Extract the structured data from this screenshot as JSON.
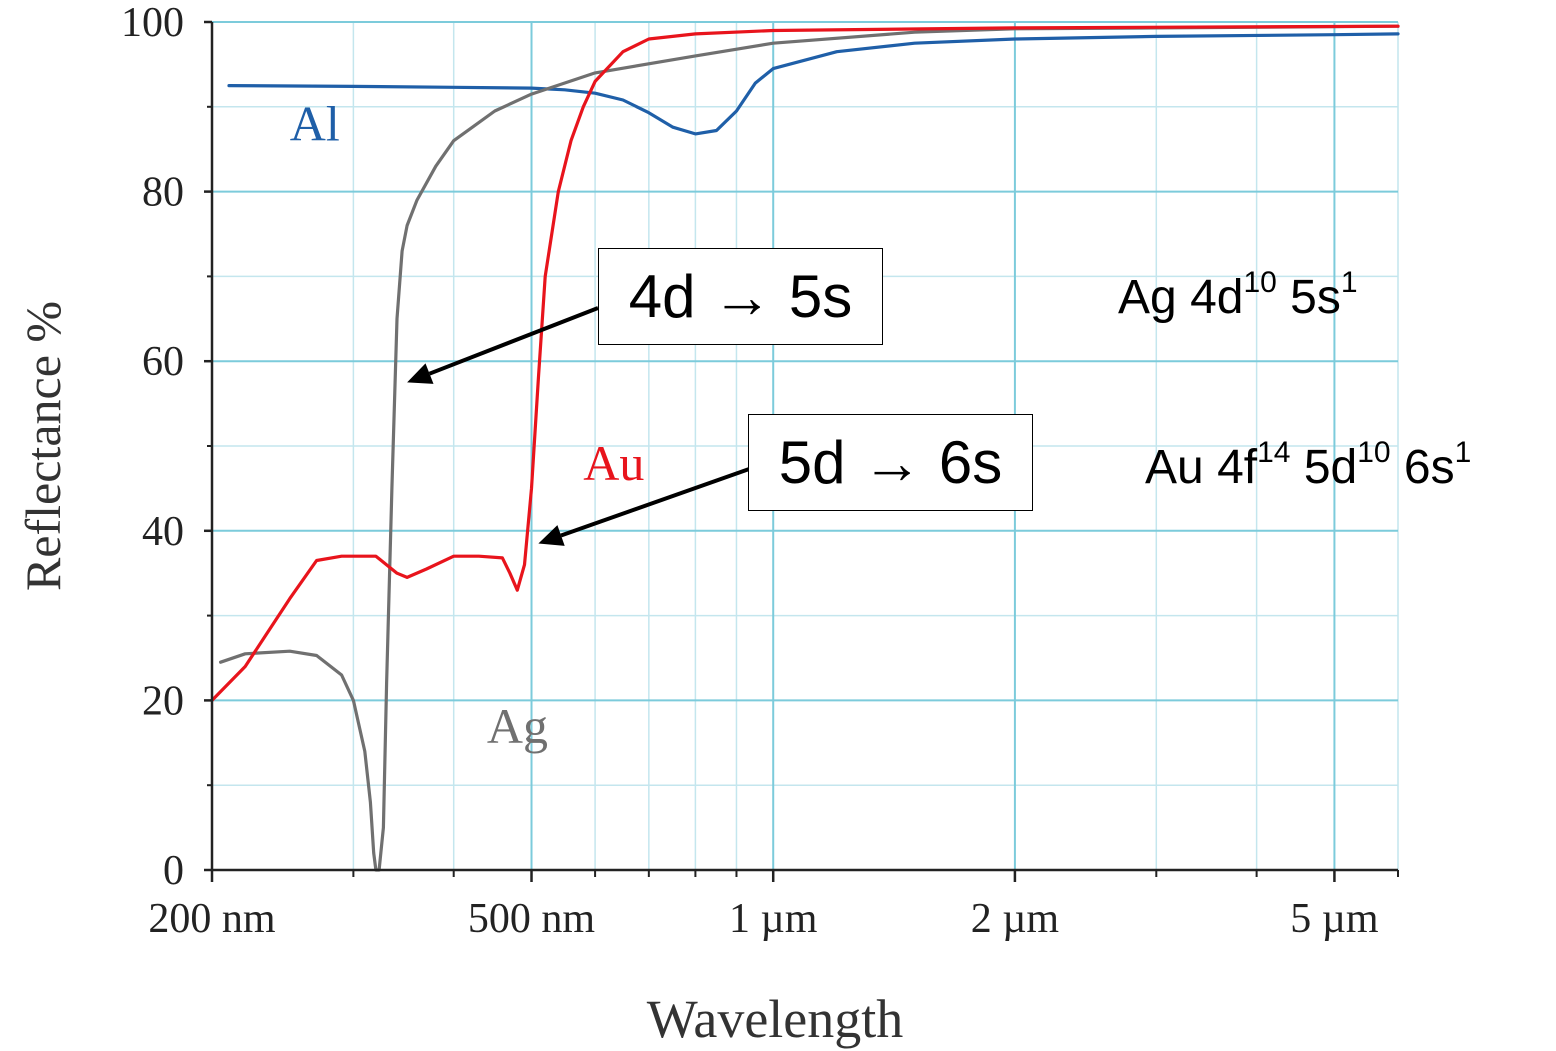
{
  "chart_data": {
    "type": "line",
    "xlabel": "Wavelength",
    "ylabel": "Reflectance %",
    "xscale": "log",
    "xlim_nm": [
      200,
      6000
    ],
    "ylim": [
      0,
      100
    ],
    "grid": true,
    "y_ticks": [
      "0",
      "20",
      "40",
      "60",
      "80",
      "100"
    ],
    "x_ticks": [
      {
        "value": 200,
        "label": "200 nm"
      },
      {
        "value": 500,
        "label": "500 nm"
      },
      {
        "value": 1000,
        "label": "1 µm"
      },
      {
        "value": 2000,
        "label": "2 µm"
      },
      {
        "value": 5000,
        "label": "5 µm"
      }
    ],
    "series": [
      {
        "name": "Al",
        "color": "#1f5fa8",
        "points": [
          [
            210,
            92.5
          ],
          [
            300,
            92.4
          ],
          [
            400,
            92.3
          ],
          [
            500,
            92.2
          ],
          [
            550,
            92.0
          ],
          [
            600,
            91.6
          ],
          [
            650,
            90.8
          ],
          [
            700,
            89.3
          ],
          [
            750,
            87.6
          ],
          [
            800,
            86.8
          ],
          [
            850,
            87.2
          ],
          [
            900,
            89.5
          ],
          [
            950,
            92.8
          ],
          [
            1000,
            94.5
          ],
          [
            1200,
            96.5
          ],
          [
            1500,
            97.5
          ],
          [
            2000,
            98.0
          ],
          [
            3000,
            98.3
          ],
          [
            5000,
            98.5
          ],
          [
            6000,
            98.6
          ]
        ]
      },
      {
        "name": "Ag",
        "color": "#707070",
        "points": [
          [
            205,
            24.5
          ],
          [
            220,
            25.5
          ],
          [
            250,
            25.8
          ],
          [
            270,
            25.3
          ],
          [
            290,
            23
          ],
          [
            300,
            20
          ],
          [
            310,
            14
          ],
          [
            315,
            8
          ],
          [
            318,
            2
          ],
          [
            320,
            0
          ],
          [
            323,
            0
          ],
          [
            327,
            5
          ],
          [
            330,
            22
          ],
          [
            335,
            45
          ],
          [
            340,
            65
          ],
          [
            345,
            73
          ],
          [
            350,
            76
          ],
          [
            360,
            79
          ],
          [
            380,
            83
          ],
          [
            400,
            86
          ],
          [
            450,
            89.5
          ],
          [
            500,
            91.5
          ],
          [
            600,
            94
          ],
          [
            800,
            96
          ],
          [
            1000,
            97.5
          ],
          [
            1500,
            98.8
          ],
          [
            2000,
            99.2
          ],
          [
            3000,
            99.3
          ],
          [
            6000,
            99.5
          ]
        ]
      },
      {
        "name": "Au",
        "color": "#e8141c",
        "points": [
          [
            200,
            20
          ],
          [
            220,
            24
          ],
          [
            250,
            32
          ],
          [
            270,
            36.5
          ],
          [
            290,
            37
          ],
          [
            320,
            37
          ],
          [
            340,
            35
          ],
          [
            350,
            34.5
          ],
          [
            370,
            35.5
          ],
          [
            400,
            37
          ],
          [
            430,
            37
          ],
          [
            460,
            36.8
          ],
          [
            470,
            35
          ],
          [
            480,
            33
          ],
          [
            490,
            36
          ],
          [
            500,
            45
          ],
          [
            510,
            58
          ],
          [
            520,
            70
          ],
          [
            540,
            80
          ],
          [
            560,
            86
          ],
          [
            580,
            90
          ],
          [
            600,
            93
          ],
          [
            650,
            96.5
          ],
          [
            700,
            98
          ],
          [
            800,
            98.6
          ],
          [
            1000,
            99
          ],
          [
            2000,
            99.3
          ],
          [
            6000,
            99.5
          ]
        ]
      }
    ],
    "series_labels": [
      {
        "text": "Al",
        "x": 250,
        "y": 86
      },
      {
        "text": "Au",
        "x": 580,
        "y": 46
      },
      {
        "text": "Ag",
        "x": 440,
        "y": 15
      }
    ],
    "annotations": [
      {
        "text": "4d → 5s",
        "target": [
          350,
          57.5
        ]
      },
      {
        "text": "5d → 6s",
        "target": [
          510,
          38.5
        ]
      }
    ],
    "configs": [
      {
        "element": "Ag",
        "parts": [
          [
            "4d",
            "10"
          ],
          [
            "5s",
            "1"
          ]
        ]
      },
      {
        "element": "Au",
        "parts": [
          [
            "4f",
            "14"
          ],
          [
            "5d",
            "10"
          ],
          [
            "6s",
            "1"
          ]
        ]
      }
    ]
  }
}
